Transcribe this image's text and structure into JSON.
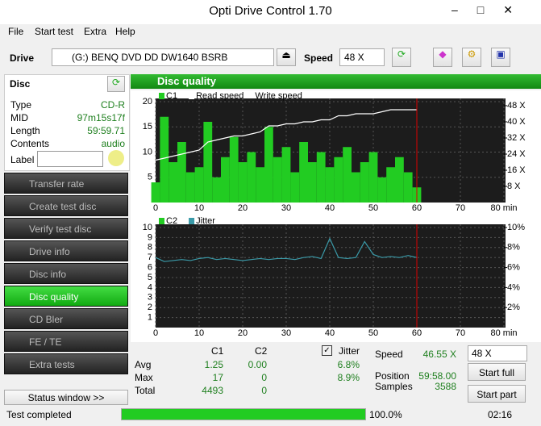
{
  "window": {
    "title": "Opti Drive Control 1.70"
  },
  "menu": [
    "File",
    "Start test",
    "Extra",
    "Help"
  ],
  "toolbar": {
    "drive_label": "Drive",
    "drive": "(G:)  BENQ DVD DD DW1640 BSRB",
    "speed_label": "Speed",
    "speed": "48 X"
  },
  "disc": {
    "title": "Disc",
    "fields": [
      [
        "Type",
        "CD-R"
      ],
      [
        "MID",
        "97m15s17f"
      ],
      [
        "Length",
        "59:59.71"
      ],
      [
        "Contents",
        "audio"
      ]
    ],
    "label": "Label"
  },
  "nav": [
    "Transfer rate",
    "Create test disc",
    "Verify test disc",
    "Drive info",
    "Disc info",
    "Disc quality",
    "CD Bler",
    "FE / TE",
    "Extra tests"
  ],
  "status_button": "Status window >>",
  "panel_title": "Disc quality",
  "chart_data": [
    {
      "type": "bar",
      "x": [
        0,
        2,
        4,
        6,
        8,
        10,
        12,
        14,
        16,
        18,
        20,
        22,
        24,
        26,
        28,
        30,
        32,
        34,
        36,
        38,
        40,
        42,
        44,
        46,
        48,
        50,
        52,
        54,
        56,
        58,
        60
      ],
      "xlim": [
        0,
        80
      ],
      "xticks": [
        0,
        10,
        20,
        30,
        40,
        50,
        60,
        70,
        {
          "value": 80,
          "label": "80 min"
        }
      ],
      "ylim": [
        0,
        20
      ],
      "yticks": [
        5,
        10,
        15,
        20
      ],
      "y2lim": [
        0,
        50
      ],
      "y2ticks": [
        {
          "value": 8,
          "label": "8 X"
        },
        {
          "value": 16,
          "label": "16 X"
        },
        {
          "value": 24,
          "label": "24 X"
        },
        {
          "value": 32,
          "label": "32 X"
        },
        {
          "value": 40,
          "label": "40 X"
        },
        {
          "value": 48,
          "label": "48 X"
        }
      ],
      "grid": true,
      "series": [
        {
          "name": "C1",
          "type": "bar",
          "color": "#22cc22",
          "values": [
            4,
            17,
            8,
            12,
            6,
            7,
            16,
            5,
            9,
            13,
            8,
            10,
            7,
            15,
            9,
            11,
            6,
            12,
            8,
            10,
            7,
            9,
            11,
            6,
            8,
            10,
            5,
            7,
            9,
            6,
            3
          ]
        },
        {
          "name": "Read speed",
          "type": "line",
          "axis": "y2",
          "color": "#ffffff",
          "values": [
            21,
            22,
            23,
            24,
            25,
            26,
            30,
            31,
            32,
            33,
            33,
            34,
            35,
            38,
            38,
            39,
            39,
            40,
            40,
            41,
            41,
            43,
            43,
            44,
            44,
            44,
            45,
            46,
            46,
            46,
            46
          ]
        },
        {
          "name": "Write speed",
          "type": "line",
          "axis": "y2",
          "color": "#ff4040"
        }
      ]
    },
    {
      "type": "bar",
      "x": [
        0,
        2,
        4,
        6,
        8,
        10,
        12,
        14,
        16,
        18,
        20,
        22,
        24,
        26,
        28,
        30,
        32,
        34,
        36,
        38,
        40,
        42,
        44,
        46,
        48,
        50,
        52,
        54,
        56,
        58,
        60
      ],
      "xlim": [
        0,
        80
      ],
      "xticks": [
        0,
        10,
        20,
        30,
        40,
        50,
        60,
        70,
        {
          "value": 80,
          "label": "80 min"
        }
      ],
      "ylim": [
        0,
        10
      ],
      "yticks": [
        1,
        2,
        3,
        4,
        5,
        6,
        7,
        8,
        9,
        10
      ],
      "y2lim": [
        0,
        10
      ],
      "y2ticks": [
        {
          "value": 2,
          "label": "2%"
        },
        {
          "value": 4,
          "label": "4%"
        },
        {
          "value": 6,
          "label": "6%"
        },
        {
          "value": 8,
          "label": "8%"
        },
        {
          "value": 10,
          "label": "10%"
        }
      ],
      "grid": true,
      "series": [
        {
          "name": "C2",
          "type": "bar",
          "color": "#22cc22",
          "values": [
            0,
            0,
            0,
            0,
            0,
            0,
            0,
            0,
            0,
            0,
            0,
            0,
            0,
            0,
            0,
            0,
            0,
            0,
            0,
            0,
            0,
            0,
            0,
            0,
            0,
            0,
            0,
            0,
            0,
            0,
            0
          ]
        },
        {
          "name": "Jitter",
          "type": "line",
          "axis": "y2",
          "color": "#3a9aa8",
          "values": [
            7.0,
            6.6,
            6.7,
            6.8,
            6.7,
            6.9,
            7.0,
            6.8,
            6.9,
            6.8,
            6.7,
            6.8,
            6.9,
            6.8,
            6.9,
            6.9,
            6.8,
            7.0,
            7.1,
            6.9,
            8.9,
            7.0,
            6.9,
            7.0,
            8.6,
            7.3,
            7.0,
            7.1,
            7.0,
            7.2,
            7.0
          ]
        }
      ]
    }
  ],
  "stats": {
    "headers": [
      "C1",
      "C2",
      "Jitter"
    ],
    "rows": [
      [
        "Avg",
        "1.25",
        "0.00",
        "6.8%"
      ],
      [
        "Max",
        "17",
        "0",
        "8.9%"
      ],
      [
        "Total",
        "4493",
        "0"
      ]
    ]
  },
  "info": [
    [
      "Speed",
      "46.55 X"
    ],
    [
      "Position",
      "59:58.00"
    ],
    [
      "Samples",
      "3588"
    ]
  ],
  "speed_select": "48 X",
  "buttons": [
    "Start full",
    "Start part"
  ],
  "statusbar": {
    "text": "Test completed",
    "progress": "100.0%",
    "time": "02:16"
  }
}
